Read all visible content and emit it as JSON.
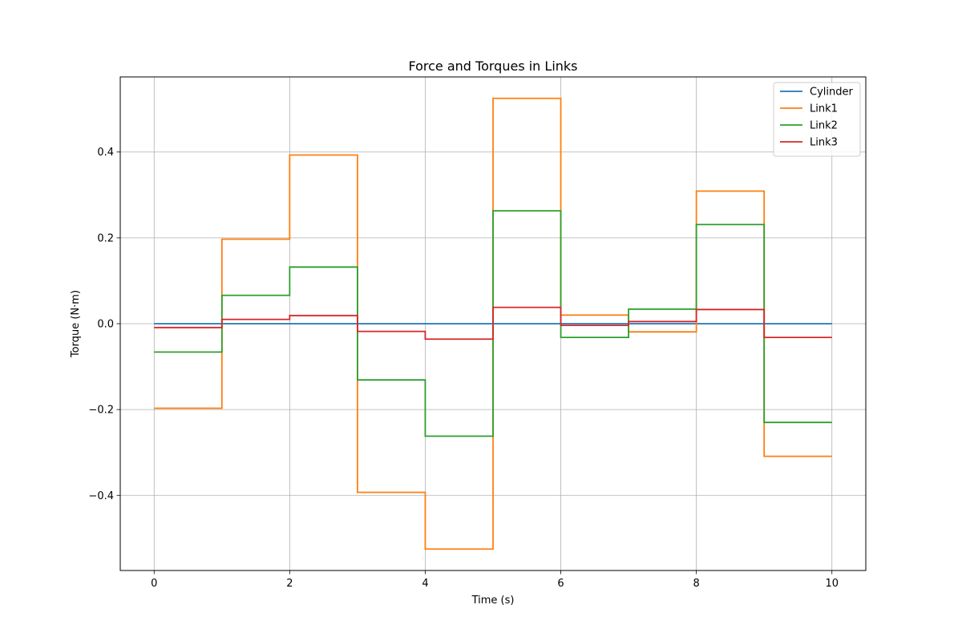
{
  "chart_data": {
    "type": "line",
    "step": "post",
    "title": "Force and Torques in Links",
    "xlabel": "Time (s)",
    "ylabel": "Torque (N·m)",
    "xlim": [
      -0.5,
      10.5
    ],
    "ylim": [
      -0.575,
      0.575
    ],
    "xticks": [
      0,
      2,
      4,
      6,
      8,
      10
    ],
    "xtick_labels": [
      "0",
      "2",
      "4",
      "6",
      "8",
      "10"
    ],
    "yticks": [
      -0.4,
      -0.2,
      0.0,
      0.2,
      0.4
    ],
    "ytick_labels": [
      "−0.4",
      "−0.2",
      "0.0",
      "0.2",
      "0.4"
    ],
    "grid": true,
    "legend_position": "top-right",
    "x": [
      0,
      1,
      2,
      3,
      4,
      5,
      6,
      7,
      8,
      9,
      10
    ],
    "series": [
      {
        "name": "Cylinder",
        "color": "#1f77b4",
        "values": [
          0,
          0,
          0,
          0,
          0,
          0,
          0,
          0,
          0,
          0,
          0
        ]
      },
      {
        "name": "Link1",
        "color": "#ff7f0e",
        "values": [
          -0.197,
          0.197,
          0.393,
          -0.393,
          -0.525,
          0.525,
          0.02,
          -0.019,
          0.309,
          -0.309,
          -0.309
        ]
      },
      {
        "name": "Link2",
        "color": "#2ca02c",
        "values": [
          -0.066,
          0.066,
          0.132,
          -0.131,
          -0.262,
          0.263,
          -0.032,
          0.034,
          0.231,
          -0.23,
          -0.23
        ]
      },
      {
        "name": "Link3",
        "color": "#d62728",
        "values": [
          -0.009,
          0.01,
          0.019,
          -0.018,
          -0.036,
          0.038,
          -0.004,
          0.005,
          0.033,
          -0.032,
          -0.032
        ]
      }
    ]
  }
}
